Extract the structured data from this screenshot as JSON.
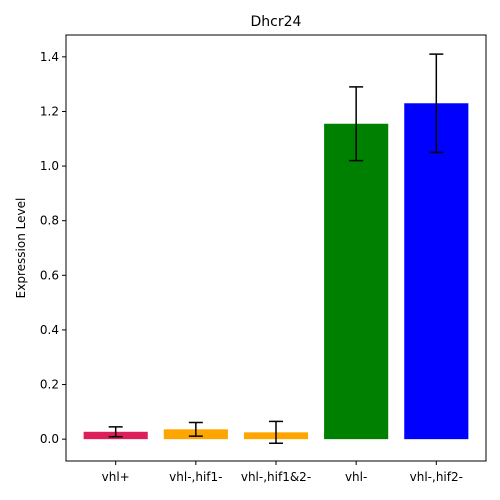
{
  "chart_data": {
    "type": "bar",
    "title": "Dhcr24",
    "xlabel": "",
    "ylabel": "Expression Level",
    "categories": [
      "vhl+",
      "vhl-,hif1-",
      "vhl-,hif1&2-",
      "vhl-",
      "vhl-,hif2-"
    ],
    "values": [
      0.027,
      0.036,
      0.025,
      1.155,
      1.23
    ],
    "errors": [
      0.018,
      0.025,
      0.04,
      0.135,
      0.18
    ],
    "colors": [
      "#dc1f5a",
      "#ffa500",
      "#ffa500",
      "#008000",
      "#0000ff"
    ],
    "ylim": [
      -0.08,
      1.48
    ],
    "yticks": [
      0.0,
      0.2,
      0.4,
      0.6,
      0.8,
      1.0,
      1.2,
      1.4
    ],
    "ytick_labels": [
      "0.0",
      "0.2",
      "0.4",
      "0.6",
      "0.8",
      "1.0",
      "1.2",
      "1.4"
    ],
    "grid": false,
    "error_bar_color": "#000000"
  }
}
